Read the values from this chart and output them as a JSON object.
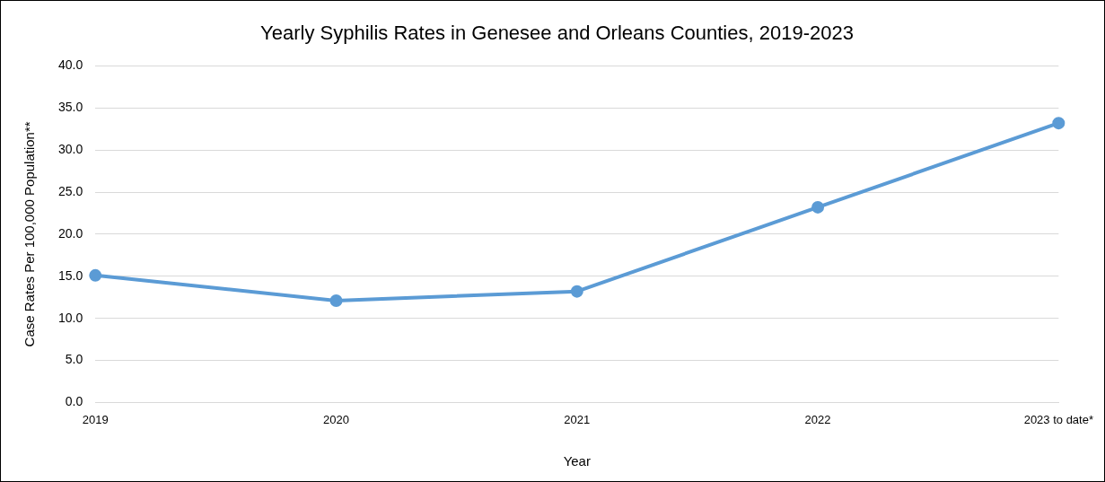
{
  "chart_data": {
    "type": "line",
    "title": "Yearly Syphilis Rates in Genesee and Orleans Counties, 2019-2023",
    "xlabel": "Year",
    "ylabel": "Case Rates Per 100,000 Population**",
    "categories": [
      "2019",
      "2020",
      "2021",
      "2022",
      "2023 to date*"
    ],
    "series": [
      {
        "color": "#5b9bd5",
        "values": [
          15.1,
          12.1,
          13.2,
          23.2,
          33.2
        ]
      }
    ],
    "ylim": [
      0,
      40
    ],
    "yticks": [
      {
        "value": 0,
        "label": "0.0"
      },
      {
        "value": 5,
        "label": "5.0"
      },
      {
        "value": 10,
        "label": "10.0"
      },
      {
        "value": 15,
        "label": "15.0"
      },
      {
        "value": 20,
        "label": "20.0"
      },
      {
        "value": 25,
        "label": "25.0"
      },
      {
        "value": 30,
        "label": "30.0"
      },
      {
        "value": 35,
        "label": "35.0"
      },
      {
        "value": 40,
        "label": "40.0"
      }
    ],
    "grid": "y",
    "legend": false,
    "marker": "circle",
    "line_style": "solid"
  }
}
